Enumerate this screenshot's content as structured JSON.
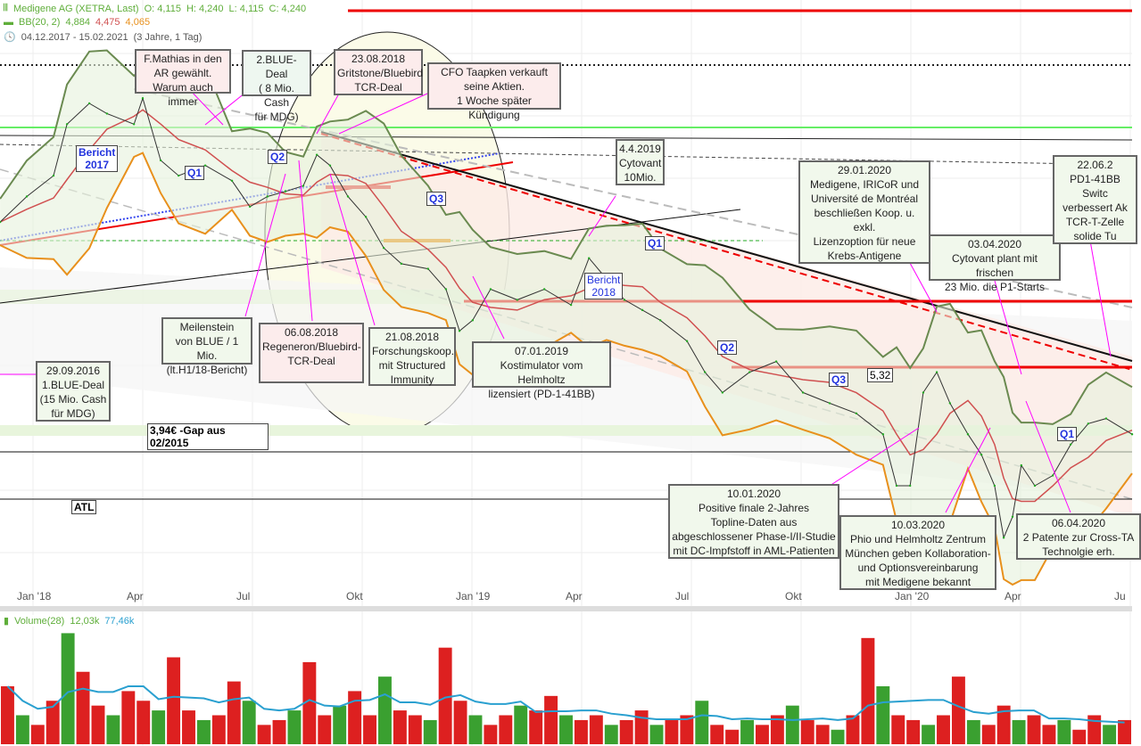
{
  "header": {
    "title": "Medigene AG (XETRA, Last)",
    "open": "O: 4,115",
    "high": "H: 4,240",
    "low": "L: 4,115",
    "close": "C: 4,240",
    "bb_label": "BB(20, 2)",
    "bb_upper": "4,884",
    "bb_mid": "4,475",
    "bb_lower": "4,065",
    "range": "04.12.2017 - 15.02.2021",
    "range_note": "(3 Jahre, 1 Tag)"
  },
  "volume": {
    "label": "Volume(28)",
    "value": "12,03k",
    "avg": "77,46k"
  },
  "annotations": [
    "F.Mathias in den\nAR  gewählt.\nWarum auch immer",
    "2.BLUE-Deal\n( 8 Mio. Cash\nfür MDG)",
    "23.08.2018\nGritstone/Bluebird\nTCR-Deal",
    "CFO Taapken verkauft\nseine Aktien.\n1 Woche später Kündigung",
    "4.4.2019\nCytovant\n10Mio.",
    "29.01.2020\nMedigene, IRICoR und\nUniversité de Montréal\nbeschließen Koop. u. exkl.\nLizenzoption für neue\nKrebs-Antigene",
    "03.04.2020\nCytovant plant mit frischen\n23 Mio. die P1-Starts",
    "22.06.2\nPD1-41BB Switc\nverbessert Ak\nTCR-T-Zelle\nsolide Tu",
    "Meilenstein\nvon BLUE / 1 Mio.\n(lt.H1/18-Bericht)",
    "06.08.2018\nRegeneron/Bluebird-\nTCR-Deal",
    "21.08.2018\nForschungskoop.\nmit Structured\nImmunity",
    "07.01.2019\nKostimulator vom Helmholtz\nlizensiert (PD-1-41BB)",
    "29.09.2016\n1.BLUE-Deal\n(15 Mio. Cash\nfür MDG)",
    "10.01.2020\nPositive finale 2-Jahres\nTopline-Daten aus\nabgeschlossener Phase-I/II-Studie\nmit DC-Impfstoff in AML-Patienten",
    "10.03.2020\nPhio und Helmholtz Zentrum\nMünchen geben Kollaboration-\nund Optionsvereinbarung\nmit Medigene bekannt",
    "06.04.2020\n2 Patente zur Cross-TA\nTechnolgie erh."
  ],
  "tags": {
    "bericht2017": "Bericht\n2017",
    "bericht2018": "Bericht\n2018",
    "q1a": "Q1",
    "q2a": "Q2",
    "q3a": "Q3",
    "q1b": "Q1",
    "q2b": "Q2",
    "q3b": "Q3",
    "q1c": "Q1",
    "level": "5,32",
    "gap": "3,94€ -Gap aus 02/2015",
    "atl": "ATL"
  },
  "colors": {
    "price": "#6a8a50",
    "bb_upper": "#6a8a50",
    "bb_mid": "#d05050",
    "bb_lower": "#e8901c",
    "vol_up": "#3aa030",
    "vol_down": "#dd2020",
    "vol_avg": "#2aa0d0"
  },
  "chart_data": {
    "type": "line",
    "title": "Medigene AG (XETRA, Last)",
    "x_unit": "months since Jan 2018",
    "xticks": [
      {
        "t": 0,
        "label": "Jan '18"
      },
      {
        "t": 3,
        "label": "Apr"
      },
      {
        "t": 6,
        "label": "Jul"
      },
      {
        "t": 9,
        "label": "Okt"
      },
      {
        "t": 12,
        "label": "Jan '19"
      },
      {
        "t": 15,
        "label": "Apr"
      },
      {
        "t": 18,
        "label": "Jul"
      },
      {
        "t": 21,
        "label": "Okt"
      },
      {
        "t": 24,
        "label": "Jan '20"
      },
      {
        "t": 27,
        "label": "Apr"
      },
      {
        "t": 30,
        "label": "Ju"
      }
    ],
    "ylim": [
      2.2,
      14.7
    ],
    "price": [
      [
        -0.9,
        9.91
      ],
      [
        -0.17,
        10.46
      ],
      [
        0.56,
        10.91
      ],
      [
        0.93,
        12.02
      ],
      [
        1.54,
        12.47
      ],
      [
        2.02,
        12.25
      ],
      [
        2.76,
        12.02
      ],
      [
        3.0,
        12.58
      ],
      [
        3.49,
        11.24
      ],
      [
        3.98,
        10.91
      ],
      [
        4.71,
        11.13
      ],
      [
        5.44,
        10.8
      ],
      [
        5.93,
        10.24
      ],
      [
        6.41,
        10.46
      ],
      [
        6.9,
        10.57
      ],
      [
        7.39,
        10.69
      ],
      [
        7.76,
        11.36
      ],
      [
        8.12,
        11.13
      ],
      [
        8.61,
        10.46
      ],
      [
        9.1,
        10.02
      ],
      [
        9.59,
        9.35
      ],
      [
        10.07,
        9.01
      ],
      [
        10.8,
        8.9
      ],
      [
        11.29,
        8.46
      ],
      [
        11.66,
        7.56
      ],
      [
        12.02,
        7.79
      ],
      [
        12.51,
        8.46
      ],
      [
        13.24,
        8.23
      ],
      [
        13.98,
        8.46
      ],
      [
        14.71,
        8.12
      ],
      [
        15.2,
        9.13
      ],
      [
        15.68,
        8.68
      ],
      [
        16.17,
        8.23
      ],
      [
        16.66,
        8.01
      ],
      [
        17.15,
        7.79
      ],
      [
        17.88,
        7.34
      ],
      [
        18.37,
        6.67
      ],
      [
        18.85,
        6.23
      ],
      [
        19.59,
        6.67
      ],
      [
        20.32,
        6.9
      ],
      [
        21.05,
        6.23
      ],
      [
        21.78,
        6.0
      ],
      [
        22.51,
        5.78
      ],
      [
        23.24,
        5.33
      ],
      [
        23.61,
        4.22
      ],
      [
        23.98,
        4.22
      ],
      [
        24.34,
        6.23
      ],
      [
        24.71,
        6.67
      ],
      [
        25.07,
        6.0
      ],
      [
        25.56,
        5.33
      ],
      [
        25.93,
        4.89
      ],
      [
        26.29,
        4.22
      ],
      [
        26.54,
        3.1
      ],
      [
        26.78,
        3.55
      ],
      [
        27.02,
        4.66
      ],
      [
        27.39,
        4.22
      ],
      [
        27.88,
        4.44
      ],
      [
        28.37,
        5.11
      ],
      [
        28.85,
        5.56
      ],
      [
        29.34,
        5.67
      ],
      [
        30.05,
        5.33
      ]
    ],
    "volume_k": [
      120,
      60,
      40,
      90,
      230,
      150,
      80,
      60,
      110,
      90,
      70,
      180,
      70,
      50,
      60,
      130,
      90,
      40,
      50,
      70,
      170,
      60,
      80,
      110,
      60,
      140,
      70,
      60,
      50,
      200,
      90,
      60,
      40,
      60,
      80,
      70,
      100,
      60,
      50,
      60,
      40,
      50,
      70,
      40,
      50,
      60,
      90,
      40,
      30,
      50,
      40,
      60,
      80,
      50,
      40,
      30,
      60,
      220,
      120,
      60,
      50,
      40,
      60,
      140,
      50,
      40,
      80,
      50,
      60,
      40,
      50,
      30,
      60,
      40,
      50
    ]
  }
}
